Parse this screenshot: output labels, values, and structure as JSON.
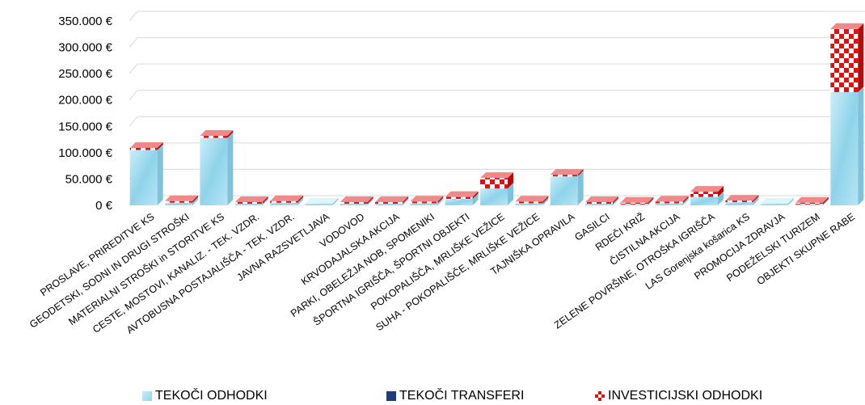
{
  "chart_data": {
    "type": "bar",
    "stacked": true,
    "title": "",
    "xlabel": "",
    "ylabel": "",
    "ylim": [
      0,
      350000
    ],
    "y_ticks": [
      "0 €",
      "50.000 €",
      "100.000 €",
      "150.000 €",
      "200.000 €",
      "250.000 €",
      "300.000 €",
      "350.000 €"
    ],
    "grid": true,
    "legend_position": "bottom",
    "categories": [
      "PROSLAVE, PRIREDITVE KS",
      "GEODETSKI, SODNI IN DRUGI STROŠKI",
      "MATERIALNI STROŠKI in STORITVE KS",
      "CESTE, MOSTOVI, KANALIZ. - TEK. VZDR.",
      "AVTOBUSNA POSTAJALIŠČA - TEK. VZDR.",
      "JAVNA RAZSVETLJAVA",
      "VODOVOD",
      "KRVODAJALSKA AKCIJA",
      "PARKI, OBELEŽJA NOB, SPOMENIKI",
      "ŠPORTNA IGRIŠČA, ŠPORTNI OBJEKTI",
      "POKOPALIŠČA, MRLIŠKE VEŽICE",
      "SUHA - POKOPALIŠČE, MRLIŠKE VEŽICE",
      "TAJNIŠKA OPRAVILA",
      "GASILCI",
      "RDEČI KRIŽ",
      "ČISTILNA AKCIJA",
      "ZELENE POVRŠINE, OTROŠKA IGRIŠČA",
      "LAS Gorenjska košarica KS",
      "PROMOCIJA ZDRAVJA",
      "PODEŽELSKI TURIZEM",
      "OBJEKTI SKUPNE RABE"
    ],
    "series": [
      {
        "name": "TEKOČI ODHODKI",
        "color": "#a8dff0",
        "values": [
          105000,
          5000,
          128000,
          3000,
          5000,
          2000,
          3000,
          3000,
          4000,
          12000,
          32000,
          4000,
          55000,
          3000,
          2000,
          4000,
          16000,
          6000,
          3000,
          2000,
          215000
        ]
      },
      {
        "name": "TEKOČI TRANSFERI",
        "color": "#1f3c78",
        "values": [
          0,
          0,
          0,
          0,
          0,
          0,
          0,
          0,
          0,
          0,
          0,
          0,
          0,
          0,
          0,
          0,
          0,
          0,
          0,
          0,
          0
        ]
      },
      {
        "name": "INVESTICIJSKI ODHODKI",
        "color": "#e01010",
        "values": [
          4000,
          2000,
          4000,
          2000,
          2000,
          0,
          2000,
          2000,
          2000,
          4000,
          20000,
          2000,
          3000,
          2000,
          2000,
          2000,
          10000,
          2000,
          0,
          2000,
          120000
        ]
      }
    ]
  }
}
